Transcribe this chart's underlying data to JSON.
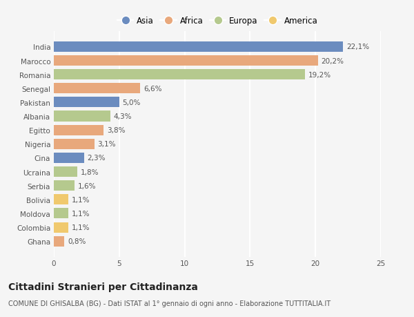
{
  "countries": [
    "India",
    "Marocco",
    "Romania",
    "Senegal",
    "Pakistan",
    "Albania",
    "Egitto",
    "Nigeria",
    "Cina",
    "Ucraina",
    "Serbia",
    "Bolivia",
    "Moldova",
    "Colombia",
    "Ghana"
  ],
  "values": [
    22.1,
    20.2,
    19.2,
    6.6,
    5.0,
    4.3,
    3.8,
    3.1,
    2.3,
    1.8,
    1.6,
    1.1,
    1.1,
    1.1,
    0.8
  ],
  "labels": [
    "22,1%",
    "20,2%",
    "19,2%",
    "6,6%",
    "5,0%",
    "4,3%",
    "3,8%",
    "3,1%",
    "2,3%",
    "1,8%",
    "1,6%",
    "1,1%",
    "1,1%",
    "1,1%",
    "0,8%"
  ],
  "continents": [
    "Asia",
    "Africa",
    "Europa",
    "Africa",
    "Asia",
    "Europa",
    "Africa",
    "Africa",
    "Asia",
    "Europa",
    "Europa",
    "America",
    "Europa",
    "America",
    "Africa"
  ],
  "continent_colors": {
    "Asia": "#6b8cbf",
    "Africa": "#e8a87c",
    "Europa": "#b5c98e",
    "America": "#f0c96e"
  },
  "legend_order": [
    "Asia",
    "Africa",
    "Europa",
    "America"
  ],
  "xlim": [
    0,
    25
  ],
  "xticks": [
    0,
    5,
    10,
    15,
    20,
    25
  ],
  "title": "Cittadini Stranieri per Cittadinanza",
  "subtitle": "COMUNE DI GHISALBA (BG) - Dati ISTAT al 1° gennaio di ogni anno - Elaborazione TUTTITALIA.IT",
  "bg_color": "#f5f5f5",
  "grid_color": "#ffffff",
  "bar_height": 0.75,
  "label_fontsize": 7.5,
  "tick_fontsize": 7.5,
  "title_fontsize": 10,
  "subtitle_fontsize": 7
}
